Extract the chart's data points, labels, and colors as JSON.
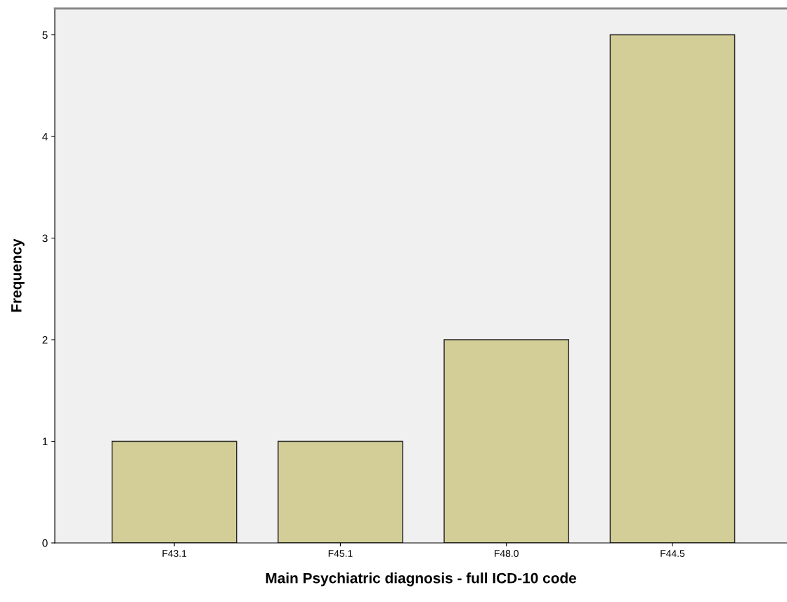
{
  "chart_data": {
    "type": "bar",
    "xlabel": "Main Psychiatric diagnosis - full ICD-10 code",
    "ylabel": "Frequency",
    "categories": [
      "F43.1",
      "F45.1",
      "F48.0",
      "F44.5"
    ],
    "values": [
      1,
      1,
      2,
      5
    ],
    "color": "#d3ce97",
    "ylim": [
      0,
      5.26
    ],
    "yticks": [
      0,
      1,
      2,
      3,
      4,
      5
    ],
    "grid": false,
    "legend": false
  }
}
